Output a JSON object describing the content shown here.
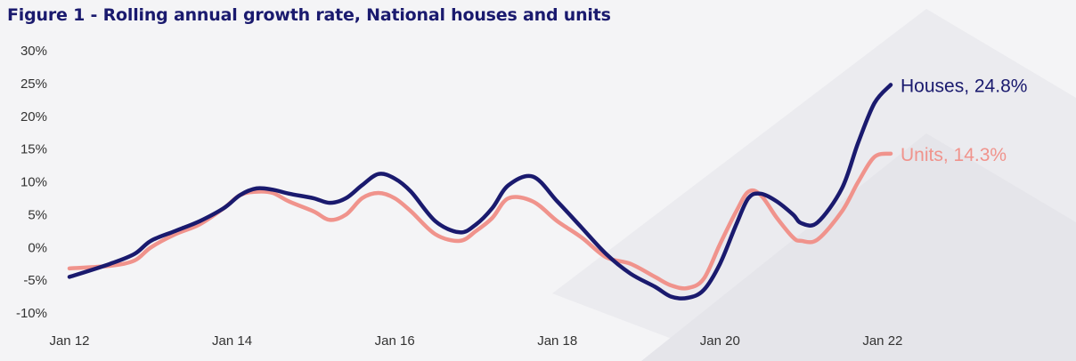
{
  "title": "Figure 1 - Rolling annual growth rate, National houses and units",
  "chart_data": {
    "type": "line",
    "title": "Figure 1 - Rolling annual growth rate, National houses and units",
    "xlabel": "",
    "ylabel": "",
    "x_ticks": [
      "Jan 12",
      "Jan 14",
      "Jan 16",
      "Jan 18",
      "Jan 20",
      "Jan 22"
    ],
    "x_tick_positions": [
      2012,
      2014,
      2016,
      2018,
      2020,
      2022
    ],
    "y_ticks": [
      "30%",
      "25%",
      "20%",
      "15%",
      "10%",
      "5%",
      "0%",
      "-5%",
      "-10%"
    ],
    "y_tick_values": [
      30,
      25,
      20,
      15,
      10,
      5,
      0,
      -5,
      -10
    ],
    "xlim": [
      2012,
      2022.1
    ],
    "ylim": [
      -10,
      30
    ],
    "grid": false,
    "legend": "end-of-line labels",
    "series": [
      {
        "name": "Houses",
        "end_label": "Houses, 24.8%",
        "color": "#1a1a6e",
        "x": [
          2012.0,
          2012.5,
          2012.8,
          2013.0,
          2013.3,
          2013.6,
          2013.9,
          2014.1,
          2014.3,
          2014.5,
          2014.7,
          2015.0,
          2015.2,
          2015.4,
          2015.6,
          2015.8,
          2016.0,
          2016.2,
          2016.5,
          2016.8,
          2017.0,
          2017.2,
          2017.4,
          2017.7,
          2018.0,
          2018.3,
          2018.6,
          2018.9,
          2019.2,
          2019.4,
          2019.6,
          2019.8,
          2020.0,
          2020.2,
          2020.35,
          2020.5,
          2020.7,
          2020.9,
          2021.0,
          2021.2,
          2021.5,
          2021.7,
          2021.9,
          2022.1
        ],
        "values": [
          -4.5,
          -2.5,
          -1.0,
          1.0,
          2.5,
          4.0,
          6.0,
          8.0,
          9.0,
          8.8,
          8.2,
          7.5,
          6.8,
          7.5,
          9.5,
          11.2,
          10.5,
          8.5,
          4.0,
          2.3,
          3.5,
          6.0,
          9.5,
          10.8,
          7.0,
          3.0,
          -1.0,
          -4.0,
          -6.0,
          -7.5,
          -7.7,
          -6.5,
          -2.5,
          3.5,
          7.5,
          8.2,
          7.0,
          5.0,
          3.7,
          3.8,
          9.0,
          16.0,
          22.0,
          24.8
        ]
      },
      {
        "name": "Units",
        "end_label": "Units, 14.3%",
        "color": "#f0938c",
        "x": [
          2012.0,
          2012.5,
          2012.8,
          2013.0,
          2013.3,
          2013.6,
          2013.9,
          2014.1,
          2014.3,
          2014.5,
          2014.7,
          2015.0,
          2015.2,
          2015.4,
          2015.6,
          2015.8,
          2016.0,
          2016.2,
          2016.5,
          2016.8,
          2017.0,
          2017.2,
          2017.4,
          2017.7,
          2018.0,
          2018.3,
          2018.6,
          2018.9,
          2019.2,
          2019.4,
          2019.6,
          2019.8,
          2020.0,
          2020.2,
          2020.35,
          2020.5,
          2020.7,
          2020.9,
          2021.0,
          2021.2,
          2021.5,
          2021.7,
          2021.9,
          2022.1
        ],
        "values": [
          -3.2,
          -2.8,
          -2.0,
          0.0,
          2.0,
          3.5,
          6.0,
          8.0,
          8.5,
          8.3,
          7.0,
          5.5,
          4.2,
          5.0,
          7.5,
          8.3,
          7.5,
          5.5,
          2.0,
          1.0,
          2.5,
          4.5,
          7.5,
          7.0,
          4.0,
          1.5,
          -1.5,
          -2.5,
          -4.5,
          -5.8,
          -6.2,
          -4.8,
          0.5,
          5.5,
          8.5,
          8.0,
          4.5,
          1.5,
          1.0,
          1.2,
          5.5,
          10.0,
          13.8,
          14.3
        ]
      }
    ]
  }
}
